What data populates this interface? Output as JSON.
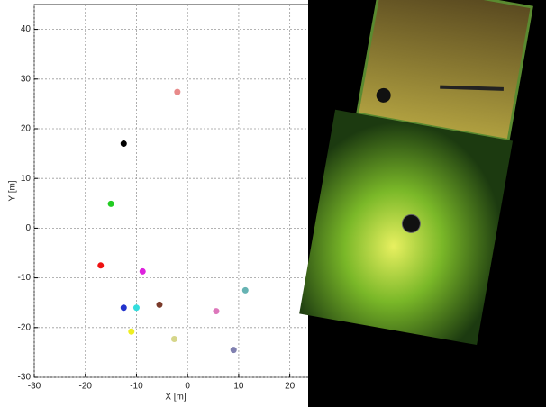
{
  "chart_data": {
    "type": "scatter",
    "x_label": "X [m]",
    "y_label": "Y [m]",
    "x": [
      -2,
      -12.5,
      -15,
      -17,
      -8.8,
      11.3,
      -5.5,
      -12.5,
      -10,
      5.6,
      -11,
      -2.6,
      9
    ],
    "y": [
      27.4,
      17,
      4.9,
      -7.5,
      -8.7,
      -12.5,
      -15.4,
      -16,
      -16,
      -16.7,
      -20.8,
      -22.3,
      -24.5
    ],
    "colors": [
      "#e88a8a",
      "#000000",
      "#22cc22",
      "#ee1111",
      "#dd22dd",
      "#66b3b3",
      "#7a3a2a",
      "#2233cc",
      "#33dddd",
      "#dd77bb",
      "#eeee22",
      "#d6d68a",
      "#8080b0"
    ],
    "xlim": [
      -30,
      25
    ],
    "ylim": [
      -30,
      45
    ],
    "xticks": [
      -30,
      -20,
      -10,
      0,
      10,
      20
    ],
    "yticks": [
      -30,
      -20,
      -10,
      0,
      10,
      20,
      30,
      40
    ],
    "grid": true
  }
}
